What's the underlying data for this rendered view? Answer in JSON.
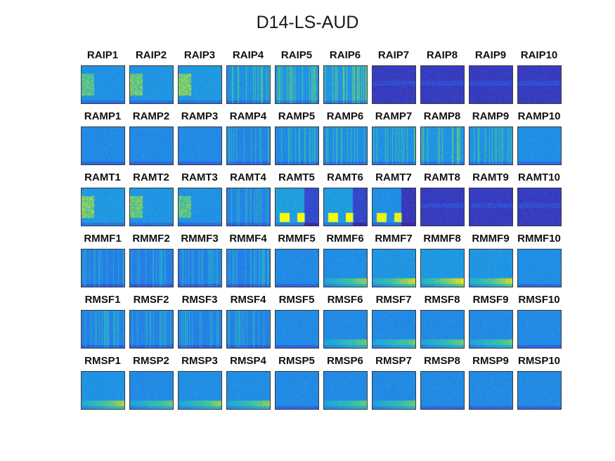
{
  "chart_data": {
    "type": "heatmap",
    "title": "D14-LS-AUD",
    "colormap": "parula",
    "colors": {
      "low": "#3e26a8",
      "mid": "#2f9df5",
      "high": "#f9fb0e"
    },
    "rows": [
      {
        "prefix": "RAIP",
        "panels": [
          "RAIP1",
          "RAIP2",
          "RAIP3",
          "RAIP4",
          "RAIP5",
          "RAIP6",
          "RAIP7",
          "RAIP8",
          "RAIP9",
          "RAIP10"
        ],
        "intensity": [
          0.55,
          0.6,
          0.65,
          0.7,
          0.75,
          0.8,
          0.15,
          0.15,
          0.15,
          0.15
        ],
        "pattern": [
          "left",
          "left",
          "left",
          "stripes",
          "stripes",
          "stripes",
          "dark",
          "dark",
          "dark",
          "dark"
        ]
      },
      {
        "prefix": "RAMP",
        "panels": [
          "RAMP1",
          "RAMP2",
          "RAMP3",
          "RAMP4",
          "RAMP5",
          "RAMP6",
          "RAMP7",
          "RAMP8",
          "RAMP9",
          "RAMP10"
        ],
        "intensity": [
          0.45,
          0.45,
          0.45,
          0.55,
          0.6,
          0.65,
          0.7,
          0.75,
          0.7,
          0.5
        ],
        "pattern": [
          "flat",
          "flat",
          "flat",
          "stripes",
          "stripes",
          "stripes",
          "stripes",
          "stripes",
          "stripes",
          "flat"
        ]
      },
      {
        "prefix": "RAMT",
        "panels": [
          "RAMT1",
          "RAMT2",
          "RAMT3",
          "RAMT4",
          "RAMT5",
          "RAMT6",
          "RAMT7",
          "RAMT8",
          "RAMT9",
          "RAMT10"
        ],
        "intensity": [
          0.65,
          0.6,
          0.55,
          0.55,
          0.75,
          0.7,
          0.5,
          0.2,
          0.15,
          0.15
        ],
        "pattern": [
          "left",
          "left",
          "left",
          "stripes",
          "blobs",
          "blobs",
          "blobs",
          "dark",
          "dark",
          "dark"
        ]
      },
      {
        "prefix": "RMMF",
        "panels": [
          "RMMF1",
          "RMMF2",
          "RMMF3",
          "RMMF4",
          "RMMF5",
          "RMMF6",
          "RMMF7",
          "RMMF8",
          "RMMF9",
          "RMMF10"
        ],
        "intensity": [
          0.45,
          0.45,
          0.45,
          0.45,
          0.45,
          0.5,
          0.6,
          0.65,
          0.6,
          0.5
        ],
        "pattern": [
          "stripes",
          "stripes",
          "stripes",
          "stripes",
          "flat",
          "bottom",
          "bottom",
          "bottom",
          "bottom",
          "flat"
        ]
      },
      {
        "prefix": "RMSF",
        "panels": [
          "RMSF1",
          "RMSF2",
          "RMSF3",
          "RMSF4",
          "RMSF5",
          "RMSF6",
          "RMSF7",
          "RMSF8",
          "RMSF9",
          "RMSF10"
        ],
        "intensity": [
          0.5,
          0.5,
          0.5,
          0.5,
          0.45,
          0.45,
          0.45,
          0.45,
          0.45,
          0.45
        ],
        "pattern": [
          "stripes",
          "stripes",
          "stripes",
          "stripes",
          "flat",
          "bottom",
          "bottom",
          "bottom",
          "bottom",
          "flat"
        ]
      },
      {
        "prefix": "RMSP",
        "panels": [
          "RMSP1",
          "RMSP2",
          "RMSP3",
          "RMSP4",
          "RMSP5",
          "RMSP6",
          "RMSP7",
          "RMSP8",
          "RMSP9",
          "RMSP10"
        ],
        "intensity": [
          0.55,
          0.45,
          0.5,
          0.5,
          0.45,
          0.45,
          0.45,
          0.45,
          0.45,
          0.45
        ],
        "pattern": [
          "bottom",
          "bottom",
          "bottom",
          "bottom",
          "flat",
          "bottom",
          "bottom",
          "flat",
          "flat",
          "flat"
        ]
      }
    ]
  }
}
